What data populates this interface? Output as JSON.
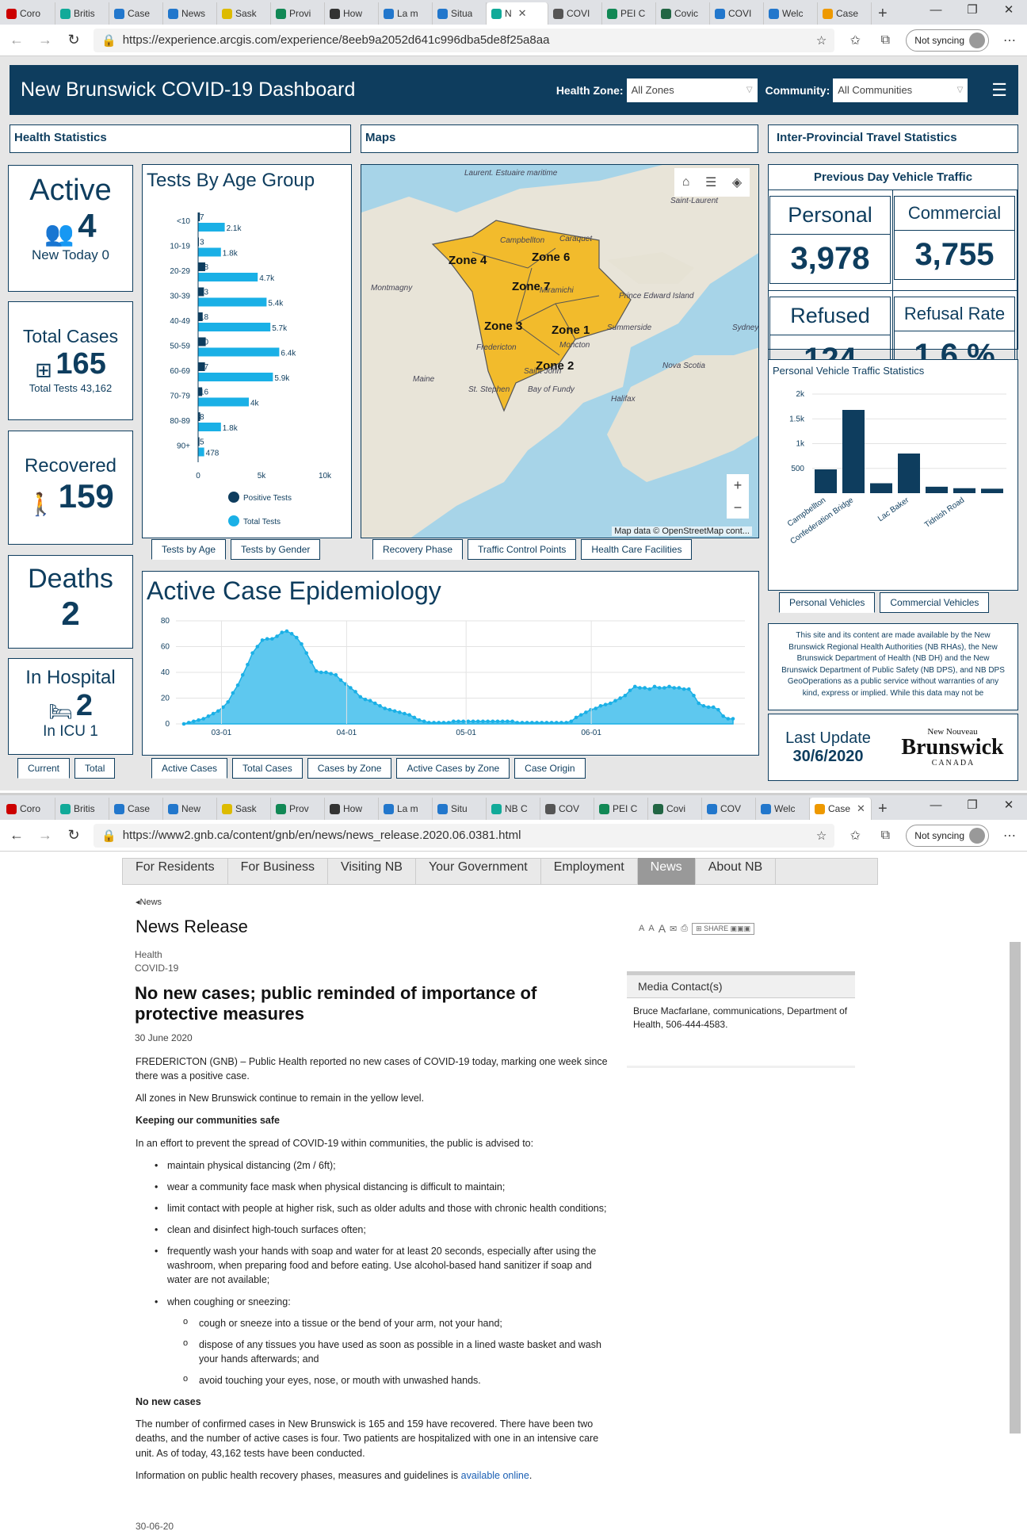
{
  "browser1": {
    "tabs": [
      "Coro",
      "Britis",
      "Case",
      "News",
      "Sask",
      "Provi",
      "How",
      "La m",
      "Situa",
      "N",
      "COVI",
      "PEI C",
      "Covic",
      "COVI",
      "Welc",
      "Case"
    ],
    "url": "https://experience.arcgis.com/experience/8eeb9a2052d641c996dba5de8f25a8aa",
    "sync": "Not syncing"
  },
  "dashboard": {
    "title": "New Brunswick COVID-19 Dashboard",
    "health_zone_label": "Health Zone:",
    "health_zone_value": "All Zones",
    "community_label": "Community:",
    "community_value": "All Communities",
    "sections": {
      "health": "Health Statistics",
      "maps": "Maps",
      "travel": "Inter-Provincial Travel Statistics"
    },
    "active": {
      "title": "Active",
      "value": "4",
      "sub": "New Today 0"
    },
    "total": {
      "title": "Total Cases",
      "value": "165",
      "sub": "Total Tests 43,162"
    },
    "recovered": {
      "title": "Recovered",
      "value": "159"
    },
    "deaths": {
      "title": "Deaths",
      "value": "2"
    },
    "hospital": {
      "title": "In Hospital",
      "value": "2",
      "sub": "In ICU 1"
    },
    "left_tabs": [
      "Current",
      "Total"
    ],
    "age_title": "Tests By Age Group",
    "age_legend": [
      "Positive Tests",
      "Total Tests"
    ],
    "age_tabs": [
      "Tests by Age",
      "Tests by Gender"
    ],
    "map_tabs": [
      "Recovery Phase",
      "Traffic Control Points",
      "Health Care Facilities"
    ],
    "map_labels": {
      "zones": [
        "Zone 4",
        "Zone 6",
        "Zone 7",
        "Zone 3",
        "Zone 1",
        "Zone 2"
      ],
      "places": [
        "Saint-Laurent",
        "Montmagny",
        "Prince Edward Island",
        "Summerside",
        "Nova Scotia",
        "Halifax",
        "Maine",
        "St. Stephen",
        "Bay of Fundy",
        "Sydney",
        "Campbellton",
        "Caraquet",
        "Miramichi",
        "Fredericton",
        "Moncton",
        "Saint John",
        "Laurent. Estuaire maritime"
      ],
      "credit": "Map data © OpenStreetMap cont..."
    },
    "epi_title": "Active Case Epidemiology",
    "epi_tabs": [
      "Active Cases",
      "Total Cases",
      "Cases by Zone",
      "Active Cases by Zone",
      "Case Origin"
    ],
    "traffic": {
      "header": "Previous Day Vehicle Traffic",
      "personal_l": "Personal",
      "personal": "3,978",
      "commercial_l": "Commercial",
      "commercial": "3,755",
      "refused_l": "Refused",
      "refused": "124",
      "rate_l": "Refusal Rate",
      "rate": "1.6 %"
    },
    "pv_title": "Personal Vehicle Traffic Statistics",
    "pv_tabs": [
      "Personal Vehicles",
      "Commercial Vehicles"
    ],
    "disclaimer": "This site and its content are made available by the New Brunswick Regional Health Authorities (NB RHAs), the New Brunswick Department of Health (NB DH) and the New Brunswick Department of Public Safety (NB DPS), and NB DPS GeoOperations as a public service without warranties of any kind, express or implied. While this data may not be",
    "last_update_l": "Last Update",
    "last_update": "30/6/2020",
    "logo": {
      "a": "New",
      "b": "Nouveau",
      "c": "Brunswick",
      "d": "C A N A D A"
    }
  },
  "chart_data": [
    {
      "type": "bar",
      "title": "Tests By Age Group",
      "categories": [
        "<10",
        "10-19",
        "20-29",
        "30-39",
        "40-49",
        "50-59",
        "60-69",
        "70-79",
        "80-89",
        "90+"
      ],
      "series": [
        {
          "name": "Positive Tests",
          "values": [
            7,
            3,
            28,
            23,
            18,
            30,
            27,
            16,
            8,
            5
          ]
        },
        {
          "name": "Total Tests",
          "values": [
            2100,
            1800,
            4700,
            5400,
            5700,
            6400,
            5900,
            4000,
            1800,
            478
          ]
        }
      ],
      "value_labels": [
        "2.1k",
        "1.8k",
        "4.7k",
        "5.4k",
        "5.7k",
        "6.4k",
        "5.9k",
        "4k",
        "1.8k",
        "478"
      ],
      "positive_labels": [
        "7",
        "3",
        "28",
        "23",
        "18",
        "30",
        "27",
        "16",
        "8",
        "5"
      ],
      "xticks": [
        "0",
        "5k",
        "10k"
      ],
      "xlim": [
        0,
        10000
      ]
    },
    {
      "type": "area",
      "title": "Active Case Epidemiology",
      "xticks": [
        "03-01",
        "04-01",
        "05-01",
        "06-01"
      ],
      "yticks": [
        "0",
        "20",
        "40",
        "60",
        "80"
      ],
      "ylim": [
        0,
        80
      ],
      "values": [
        0,
        1,
        2,
        3,
        4,
        6,
        8,
        10,
        13,
        17,
        24,
        30,
        38,
        46,
        55,
        60,
        65,
        66,
        66,
        68,
        71,
        72,
        70,
        67,
        62,
        55,
        48,
        41,
        40,
        40,
        39,
        38,
        34,
        31,
        28,
        25,
        21,
        19,
        18,
        16,
        14,
        12,
        11,
        10,
        9,
        8,
        7,
        5,
        3,
        2,
        1,
        1,
        1,
        1,
        1,
        2,
        2,
        2,
        2,
        2,
        2,
        2,
        2,
        2,
        2,
        2,
        2,
        2,
        1,
        1,
        1,
        1,
        1,
        1,
        1,
        1,
        1,
        1,
        1,
        2,
        5,
        7,
        9,
        11,
        12,
        14,
        15,
        16,
        18,
        20,
        22,
        26,
        29,
        28,
        28,
        27,
        29,
        28,
        28,
        29,
        28,
        28,
        27,
        27,
        22,
        16,
        14,
        13,
        13,
        11,
        6,
        4,
        4
      ]
    },
    {
      "type": "bar",
      "title": "Personal Vehicle Traffic Statistics",
      "categories": [
        "Campbellton",
        "Confederation Bridge",
        "",
        "Lac Baker",
        "",
        "Tidnish Road",
        ""
      ],
      "values": [
        480,
        1680,
        200,
        800,
        130,
        100,
        90
      ],
      "yticks": [
        "500",
        "1k",
        "1.5k",
        "2k"
      ],
      "ylim": [
        0,
        2000
      ]
    }
  ],
  "browser2": {
    "tabs": [
      "Coro",
      "Britis",
      "Case",
      "New",
      "Sask",
      "Prov",
      "How",
      "La m",
      "Situ",
      "NB C",
      "COV",
      "PEI C",
      "Covi",
      "COV",
      "Welc",
      "Case"
    ],
    "url": "https://www2.gnb.ca/content/gnb/en/news/news_release.2020.06.0381.html",
    "sync": "Not syncing"
  },
  "gnb": {
    "nav": [
      "For Residents",
      "For Business",
      "Visiting NB",
      "Your Government",
      "Employment",
      "News",
      "About NB"
    ],
    "crumb": "News",
    "heading": "News Release",
    "share": "SHARE",
    "cat1": "Health",
    "cat2": "COVID-19",
    "title": "No new cases; public reminded of importance of protective measures",
    "date": "30 June 2020",
    "p1": "FREDERICTON (GNB) – Public Health reported no new cases of COVID-19 today, marking one week since there was a positive case.",
    "p2": "All zones in New Brunswick continue to remain in the yellow level.",
    "h1": "Keeping our communities safe",
    "p3": "In an effort to prevent the spread of COVID-19 within communities, the public is advised to:",
    "bullets": [
      "maintain physical distancing (2m / 6ft);",
      "wear a community face mask when physical distancing is difficult to maintain;",
      "limit contact with people at higher risk, such as older adults and those with chronic health conditions;",
      "clean and disinfect high-touch surfaces often;",
      "frequently wash your hands with soap and water for at least 20 seconds, especially after using the washroom, when preparing food and before eating. Use alcohol-based hand sanitizer if soap and water are not available;",
      "when coughing or sneezing:"
    ],
    "subbullets": [
      "cough or sneeze into a tissue or the bend of your arm, not your hand;",
      "dispose of any tissues you have used as soon as possible in a lined waste basket and wash your hands afterwards; and",
      "avoid touching your eyes, nose, or mouth with unwashed hands."
    ],
    "h2": "No new cases",
    "p4": "The number of confirmed cases in New Brunswick is 165 and 159 have recovered. There have been two deaths, and the number of active cases is four. Two patients are hospitalized with one in an intensive care unit. As of today, 43,162 tests have been conducted.",
    "p5": "Information on public health recovery phases, measures and guidelines is ",
    "p5_link": "available online",
    "footer_date": "30-06-20",
    "media_h": "Media Contact(s)",
    "media": "Bruce Macfarlane, communications, Department of Health, 506-444-4583."
  },
  "colors": {
    "navy": "#0e3d5e",
    "cyan": "#1ab0e6",
    "zone": "#f2bb2c"
  }
}
